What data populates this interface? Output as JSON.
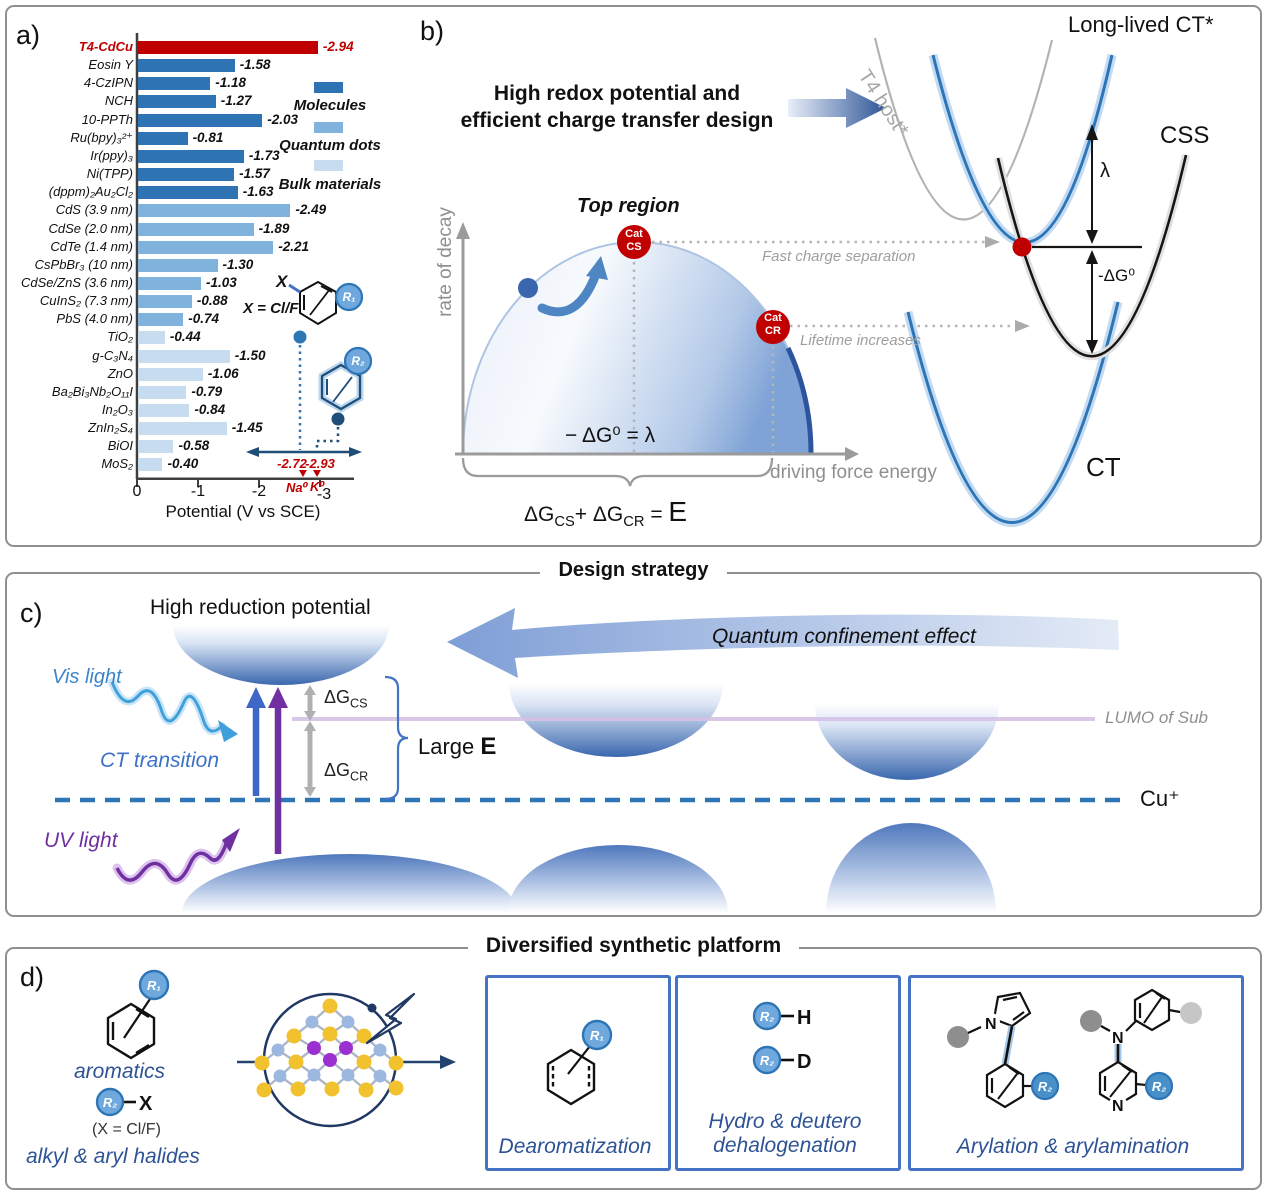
{
  "panel_a": {
    "label": "a)",
    "chart": {
      "items": [
        {
          "label": "T4-CdCu",
          "value": -2.94,
          "value_label": "-2.94",
          "group": "highlight"
        },
        {
          "label": "Eosin Y",
          "value": -1.58,
          "value_label": "-1.58",
          "group": "m"
        },
        {
          "label": "4-CzIPN",
          "value": -1.18,
          "value_label": "-1.18",
          "group": "m"
        },
        {
          "label": "NCH",
          "value": -1.27,
          "value_label": "-1.27",
          "group": "m"
        },
        {
          "label": "10-PPTh",
          "value": -2.03,
          "value_label": "-2.03",
          "group": "m"
        },
        {
          "label": "Ru(bpy)₃²⁺",
          "value": -0.81,
          "value_label": "-0.81",
          "group": "m"
        },
        {
          "label": "Ir(ppy)₃",
          "value": -1.73,
          "value_label": "-1.73",
          "group": "m"
        },
        {
          "label": "Ni(TPP)",
          "value": -1.57,
          "value_label": "-1.57",
          "group": "m"
        },
        {
          "label": "(dppm)₂Au₂Cl₂",
          "value": -1.63,
          "value_label": "-1.63",
          "group": "m"
        },
        {
          "label": "CdS (3.9 nm)",
          "value": -2.49,
          "value_label": "-2.49",
          "group": "q"
        },
        {
          "label": "CdSe (2.0 nm)",
          "value": -1.89,
          "value_label": "-1.89",
          "group": "q"
        },
        {
          "label": "CdTe (1.4 nm)",
          "value": -2.21,
          "value_label": "-2.21",
          "group": "q"
        },
        {
          "label": "CsPbBr₃ (10 nm)",
          "value": -1.3,
          "value_label": "-1.30",
          "group": "q"
        },
        {
          "label": "CdSe/ZnS (3.6 nm)",
          "value": -1.03,
          "value_label": "-1.03",
          "group": "q"
        },
        {
          "label": "CuInS₂ (7.3 nm)",
          "value": -0.88,
          "value_label": "-0.88",
          "group": "q"
        },
        {
          "label": "PbS (4.0 nm)",
          "value": -0.74,
          "value_label": "-0.74",
          "group": "q"
        },
        {
          "label": "TiO₂",
          "value": -0.44,
          "value_label": "-0.44",
          "group": "b"
        },
        {
          "label": "g-C₃N₄",
          "value": -1.5,
          "value_label": "-1.50",
          "group": "b"
        },
        {
          "label": "ZnO",
          "value": -1.06,
          "value_label": "-1.06",
          "group": "b"
        },
        {
          "label": "Ba₂Bi₃Nb₂O₁₁I",
          "value": -0.79,
          "value_label": "-0.79",
          "group": "b"
        },
        {
          "label": "In₂O₃",
          "value": -0.84,
          "value_label": "-0.84",
          "group": "b"
        },
        {
          "label": "ZnIn₂S₄",
          "value": -1.45,
          "value_label": "-1.45",
          "group": "b"
        },
        {
          "label": "BiOI",
          "value": -0.58,
          "value_label": "-0.58",
          "group": "b"
        },
        {
          "label": "MoS₂",
          "value": -0.4,
          "value_label": "-0.40",
          "group": "b"
        }
      ]
    },
    "legend": [
      {
        "label": "Molecules",
        "color": "#2E74B5"
      },
      {
        "label": "Quantum dots",
        "color": "#7FB2DC"
      },
      {
        "label": "Bulk materials",
        "color": "#C7DCEF"
      }
    ],
    "axis": {
      "ticks": [
        "0",
        "-1",
        "-2",
        "-3"
      ],
      "label": "Potential (V vs SCE)"
    },
    "inset": {
      "x_atom": "X",
      "x_eq": "X = Cl/F",
      "r1": "R₁",
      "r2": "R₂",
      "na_value": "-2.72",
      "k_value": "-2.93",
      "na": "Na⁰",
      "k": "K⁰"
    }
  },
  "panel_b": {
    "label": "b)",
    "heading_line1": "High redox potential and",
    "heading_line2": "efficient charge transfer design",
    "y_axis": "rate of decay",
    "x_axis": "driving force energy",
    "top_region": "Top region",
    "cat_cs": {
      "line1": "Cat",
      "line2": "CS"
    },
    "cat_cr": {
      "line1": "Cat",
      "line2": "CR"
    },
    "fast_cs": "Fast charge separation",
    "lifetime": "Lifetime increases",
    "eq_apex": "− ΔG⁰ = λ",
    "eq": {
      "p1": "ΔG",
      "s1": "CS",
      "p2": "+ ΔG",
      "s2": "CR",
      "p3": "=",
      "p4": "E"
    },
    "t4_host": "T4 host*",
    "long_lived": "Long-lived CT*",
    "css": "CSS",
    "ct": "CT",
    "lambda": "λ",
    "minus_dg0": "-ΔG⁰"
  },
  "section_titles": {
    "design": "Design strategy",
    "platform": "Diversified synthetic platform"
  },
  "panel_c": {
    "label": "c)",
    "high_reduction": "High reduction potential",
    "vis_light": "Vis light",
    "ct_transition": "CT transition",
    "uv_light": "UV light",
    "dg_cs": {
      "base": "ΔG",
      "sub": "CS"
    },
    "dg_cr": {
      "base": "ΔG",
      "sub": "CR"
    },
    "large_e": {
      "base": "Large ",
      "em": "E"
    },
    "quantum_effect": "Quantum confinement effect",
    "lumo": "LUMO of Sub",
    "cu": "Cu⁺"
  },
  "panel_d": {
    "label": "d)",
    "aromatics": "aromatics",
    "x_eq": "(X = Cl/F)",
    "halides": "alkyl & aryl halides",
    "r1": "R₁",
    "r2": "R₂",
    "x_atom": "X",
    "h_atom": "H",
    "d_atom": "D",
    "n_atom": "N",
    "box1_label": "Dearomatization",
    "box2_label1": "Hydro & deutero",
    "box2_label2": "dehalogenation",
    "box3_label": "Arylation & arylamination"
  },
  "chart_data": {
    "type": "bar",
    "orientation": "horizontal",
    "categories": [
      "T4-CdCu",
      "Eosin Y",
      "4-CzIPN",
      "NCH",
      "10-PPTh",
      "Ru(bpy)₃²⁺",
      "Ir(ppy)₃",
      "Ni(TPP)",
      "(dppm)₂Au₂Cl₂",
      "CdS (3.9 nm)",
      "CdSe (2.0 nm)",
      "CdTe (1.4 nm)",
      "CsPbBr₃ (10 nm)",
      "CdSe/ZnS (3.6 nm)",
      "CuInS₂ (7.3 nm)",
      "PbS (4.0 nm)",
      "TiO₂",
      "g-C₃N₄",
      "ZnO",
      "Ba₂Bi₃Nb₂O₁₁I",
      "In₂O₃",
      "ZnIn₂S₄",
      "BiOI",
      "MoS₂"
    ],
    "values": [
      -2.94,
      -1.58,
      -1.18,
      -1.27,
      -2.03,
      -0.81,
      -1.73,
      -1.57,
      -1.63,
      -2.49,
      -1.89,
      -2.21,
      -1.3,
      -1.03,
      -0.88,
      -0.74,
      -0.44,
      -1.5,
      -1.06,
      -0.79,
      -0.84,
      -1.45,
      -0.58,
      -0.4
    ],
    "groups": [
      "highlight",
      "molecule",
      "molecule",
      "molecule",
      "molecule",
      "molecule",
      "molecule",
      "molecule",
      "molecule",
      "quantum dot",
      "quantum dot",
      "quantum dot",
      "quantum dot",
      "quantum dot",
      "quantum dot",
      "quantum dot",
      "bulk",
      "bulk",
      "bulk",
      "bulk",
      "bulk",
      "bulk",
      "bulk",
      "bulk"
    ],
    "xlabel": "Potential (V vs SCE)",
    "xlim": [
      0,
      -3
    ],
    "annotations": {
      "Na⁰": -2.72,
      "K⁰": -2.93
    },
    "legend": [
      "Molecules",
      "Quantum dots",
      "Bulk materials"
    ],
    "grid": false
  }
}
